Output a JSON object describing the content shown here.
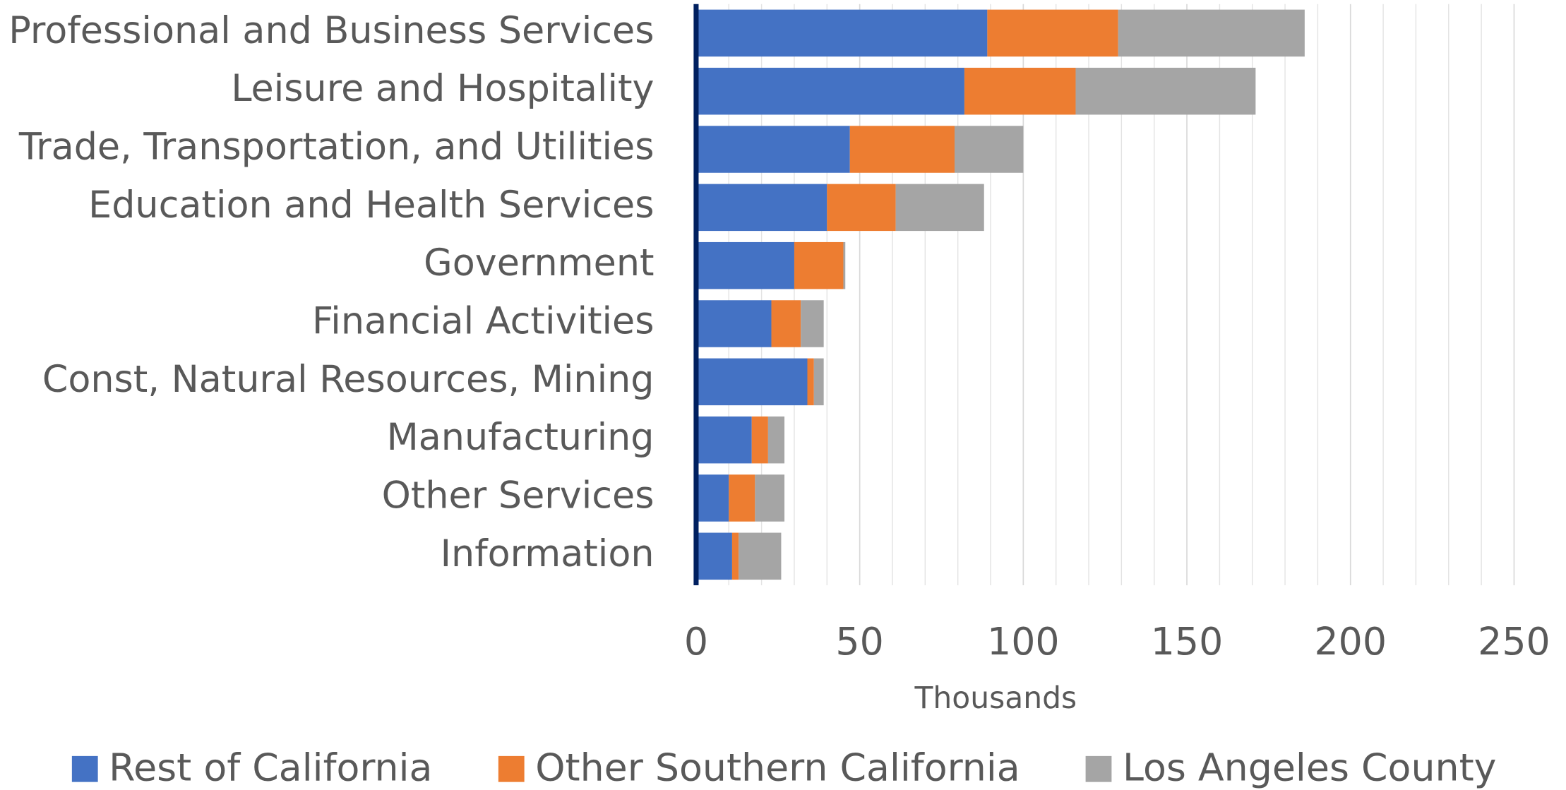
{
  "chart_data": {
    "type": "stacked_bar_horizontal",
    "categories": [
      "Professional and Business Services",
      "Leisure and Hospitality",
      "Trade, Transportation, and Utilities",
      "Education and Health Services",
      "Government",
      "Financial Activities",
      "Const, Natural Resources, Mining",
      "Manufacturing",
      "Other Services",
      "Information"
    ],
    "series": [
      {
        "name": "Rest of California",
        "color": "#4472c4",
        "values": [
          89,
          82,
          47,
          40,
          30,
          23,
          34,
          17,
          10,
          11
        ]
      },
      {
        "name": "Other Southern California",
        "color": "#ed7d31",
        "values": [
          40,
          34,
          32,
          21,
          15,
          9,
          2,
          5,
          8,
          2
        ]
      },
      {
        "name": "Los Angeles County",
        "color": "#a5a5a5",
        "values": [
          57,
          55,
          21,
          27,
          0.6,
          7,
          3,
          5,
          9,
          13
        ]
      }
    ],
    "xlabel": "Thousands",
    "xlim": [
      0,
      250
    ],
    "xticks": [
      0,
      50,
      100,
      150,
      200,
      250
    ],
    "xminor_ticks": [
      10,
      20,
      30,
      40,
      60,
      70,
      80,
      90,
      110,
      120,
      130,
      140,
      160,
      170,
      180,
      190,
      210,
      220,
      230,
      240
    ],
    "grid": true,
    "legend": "bottom"
  }
}
